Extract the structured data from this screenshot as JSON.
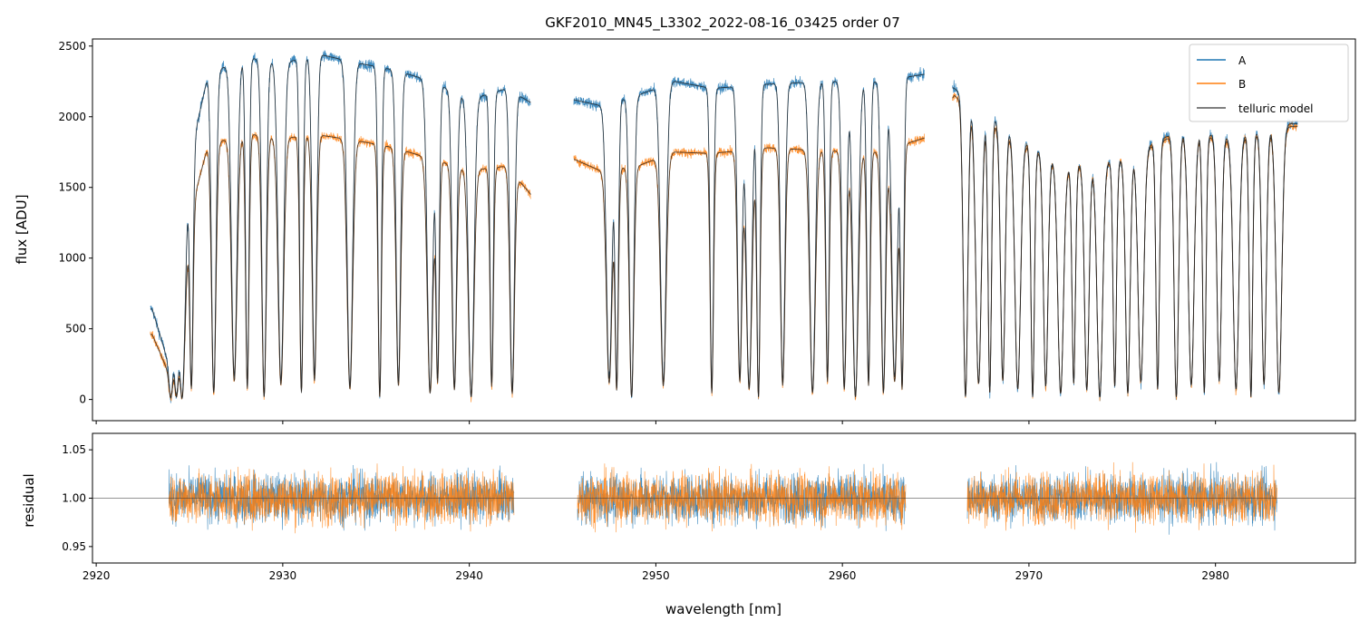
{
  "chart_data": [
    {
      "panel": "top",
      "type": "line",
      "title": "GKF2010_MN45_L3302_2022-08-16_03425  order 07",
      "xlabel": "",
      "ylabel": "flux [ADU]",
      "xlim": [
        2919.8,
        2987.5
      ],
      "ylim": [
        -150,
        2550
      ],
      "yticks": [
        0,
        500,
        1000,
        1500,
        2000,
        2500
      ],
      "ytick_labels": [
        "0",
        "500",
        "1000",
        "1500",
        "2000",
        "2500"
      ],
      "xticks": [
        2920,
        2930,
        2940,
        2950,
        2960,
        2970,
        2980
      ],
      "legend": {
        "placement": "top-right",
        "entries": [
          "A",
          "B",
          "telluric model"
        ]
      },
      "segments": [
        [
          2922.9,
          2943.3
        ],
        [
          2945.6,
          2964.4
        ],
        [
          2965.9,
          2984.4
        ]
      ],
      "series": [
        {
          "name": "A",
          "color": "#1f77b4",
          "continuum": [
            [
              2923,
              640
            ],
            [
              2924,
              200
            ],
            [
              2925,
              1700
            ],
            [
              2926,
              2300
            ],
            [
              2928,
              2420
            ],
            [
              2930,
              2380
            ],
            [
              2932,
              2440
            ],
            [
              2934,
              2380
            ],
            [
              2936,
              2330
            ],
            [
              2938,
              2250
            ],
            [
              2940,
              2120
            ],
            [
              2942,
              2200
            ],
            [
              2943.3,
              2100
            ],
            [
              2945.6,
              2120
            ],
            [
              2947,
              2080
            ],
            [
              2949,
              2150
            ],
            [
              2951,
              2250
            ],
            [
              2953,
              2200
            ],
            [
              2956,
              2230
            ],
            [
              2959,
              2250
            ],
            [
              2962,
              2250
            ],
            [
              2964.4,
              2300
            ],
            [
              2966,
              2200
            ],
            [
              2968,
              2000
            ],
            [
              2970,
              1800
            ],
            [
              2972,
              1650
            ],
            [
              2975,
              1700
            ],
            [
              2978,
              1900
            ],
            [
              2981,
              1850
            ],
            [
              2984,
              1950
            ]
          ]
        },
        {
          "name": "B",
          "color": "#ff7f0e",
          "continuum": [
            [
              2923,
              460
            ],
            [
              2924,
              150
            ],
            [
              2925,
              1300
            ],
            [
              2926,
              1800
            ],
            [
              2928,
              1880
            ],
            [
              2930,
              1850
            ],
            [
              2932,
              1870
            ],
            [
              2934,
              1830
            ],
            [
              2936,
              1780
            ],
            [
              2938,
              1700
            ],
            [
              2940,
              1620
            ],
            [
              2942,
              1650
            ],
            [
              2943.3,
              1450
            ],
            [
              2945.6,
              1700
            ],
            [
              2947,
              1620
            ],
            [
              2949,
              1650
            ],
            [
              2951,
              1750
            ],
            [
              2953,
              1740
            ],
            [
              2956,
              1780
            ],
            [
              2959,
              1760
            ],
            [
              2962,
              1750
            ],
            [
              2964.4,
              1850
            ],
            [
              2966,
              2150
            ],
            [
              2968,
              1950
            ],
            [
              2970,
              1780
            ],
            [
              2972,
              1640
            ],
            [
              2975,
              1690
            ],
            [
              2978,
              1880
            ],
            [
              2981,
              1830
            ],
            [
              2984,
              1930
            ]
          ]
        },
        {
          "name": "telluric model",
          "color": "#333333"
        }
      ],
      "absorption_lines_nm": [
        2924.0,
        2924.3,
        2924.6,
        2925.1,
        2926.3,
        2927.4,
        2928.1,
        2929.0,
        2929.9,
        2931.0,
        2931.7,
        2933.6,
        2935.2,
        2936.2,
        2937.9,
        2938.3,
        2939.2,
        2940.1,
        2941.2,
        2942.3,
        2947.5,
        2947.9,
        2948.7,
        2950.4,
        2953.0,
        2954.5,
        2955.0,
        2955.5,
        2956.8,
        2958.4,
        2959.2,
        2960.1,
        2960.7,
        2961.4,
        2962.2,
        2962.8,
        2963.2,
        2966.6,
        2967.3,
        2967.9,
        2968.6,
        2969.4,
        2970.2,
        2970.9,
        2971.7,
        2972.4,
        2973.1,
        2973.8,
        2974.6,
        2975.3,
        2976.0,
        2976.9,
        2977.9,
        2978.7,
        2979.4,
        2980.2,
        2981.1,
        2981.9,
        2982.6,
        2983.4
      ]
    },
    {
      "panel": "bottom",
      "type": "line",
      "title": "",
      "xlabel": "wavelength [nm]",
      "ylabel": "residual",
      "xlim": [
        2919.8,
        2987.5
      ],
      "ylim": [
        0.933,
        1.067
      ],
      "yticks": [
        0.95,
        1.0,
        1.05
      ],
      "ytick_labels": [
        "0.95",
        "1.00",
        "1.05"
      ],
      "xticks": [
        2920,
        2930,
        2940,
        2950,
        2960,
        2970,
        2980
      ],
      "xtick_labels": [
        "2920",
        "2930",
        "2940",
        "2950",
        "2960",
        "2970",
        "2980"
      ],
      "reference_line": 1.0,
      "segments": [
        [
          2923.9,
          2942.4
        ],
        [
          2945.8,
          2963.4
        ],
        [
          2966.7,
          2983.3
        ]
      ],
      "series": [
        {
          "name": "A",
          "color": "#1f77b4",
          "center": 1.0,
          "scatter": 0.02
        },
        {
          "name": "B",
          "color": "#ff7f0e",
          "center": 1.0,
          "scatter": 0.021
        }
      ]
    }
  ]
}
